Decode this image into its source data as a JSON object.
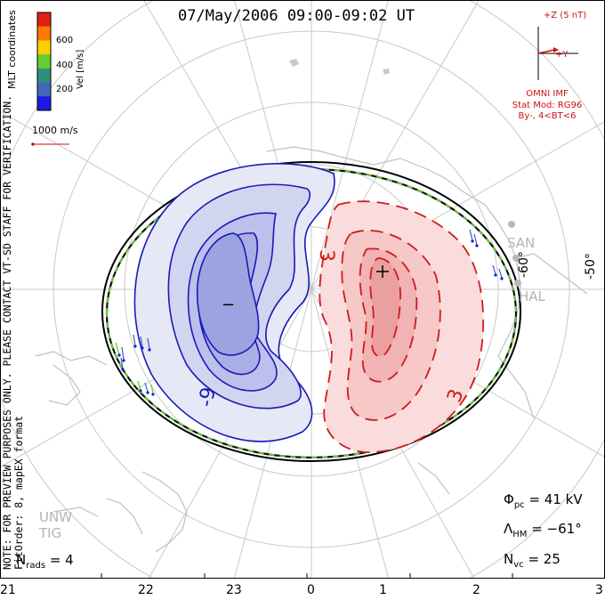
{
  "title": "07/May/2006  09:00-09:02  UT",
  "colorbar": {
    "label": "Vel [m/s]",
    "ticks": [
      "600",
      "400",
      "200"
    ],
    "colors": [
      "#e02010",
      "#ff7a00",
      "#ffd000",
      "#66cc33",
      "#2f8f7f",
      "#4466bb",
      "#1a1ae0"
    ]
  },
  "coords_label": "MLT coordinates",
  "scale_label": "1000 m/s",
  "notes": {
    "line1": "NOTE: FOR PREVIEW PURPOSES ONLY.  PLEASE CONTACT VT-SD STAFF FOR VERIFICATION.",
    "line2": "FitOrder: 8,  mapEX format"
  },
  "imf": {
    "z_label": "+Z (5 nT)",
    "y_label": "+Y",
    "source": "OMNI IMF",
    "stat_mod": "Stat Mod: RG96",
    "by_bt": "By-, 4<BT<6"
  },
  "latitude_labels": [
    "-60°",
    "-50°"
  ],
  "stations": [
    "SAN",
    "HAL",
    "UNW",
    "TIG"
  ],
  "contours": {
    "negative_label": "-9",
    "positive_label_1": "3",
    "positive_label_2": "3",
    "min_marker": "−",
    "max_marker": "+"
  },
  "stats": {
    "n_rads_label": "N",
    "n_rads_sub": "rads",
    "n_rads_value": "= 4",
    "phi_label": "Φ",
    "phi_sub": "pc",
    "phi_value": "= 41 kV",
    "lambda_label": "Λ",
    "lambda_sub": "HM",
    "lambda_value": "= −61°",
    "nvc_label": "N",
    "nvc_sub": "vc",
    "nvc_value": "= 25"
  },
  "mlt_hours": [
    "21",
    "22",
    "23",
    "0",
    "1",
    "2",
    "3"
  ]
}
